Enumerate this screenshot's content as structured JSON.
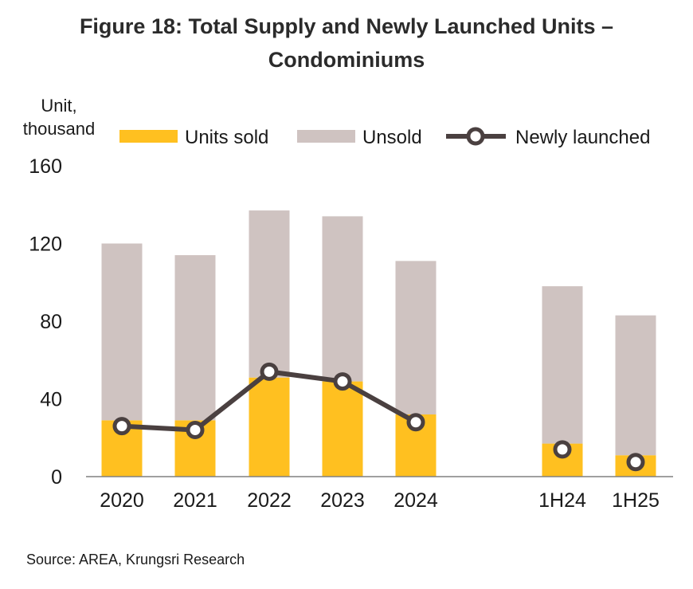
{
  "chart_data": {
    "type": "bar",
    "title": [
      "Figure 18: Total Supply and Newly Launched Units –",
      "Condominiums"
    ],
    "ylabel": [
      "Unit,",
      "thousand"
    ],
    "xlabel": "",
    "ylim": [
      0,
      160
    ],
    "yticks": [
      0,
      40,
      80,
      120,
      160
    ],
    "grid": false,
    "legend_position": "top",
    "stacked": true,
    "categories": [
      "2020",
      "2021",
      "2022",
      "2023",
      "2024",
      "1H24",
      "1H25"
    ],
    "series": [
      {
        "name": "Units sold",
        "type": "bar",
        "color": "#FFC020",
        "values": [
          29,
          29,
          51,
          49,
          32,
          17,
          11
        ]
      },
      {
        "name": "Unsold",
        "type": "bar",
        "color": "#CFC3C1",
        "values": [
          91,
          85,
          86,
          85,
          79,
          81,
          72
        ]
      },
      {
        "name": "Newly launched",
        "type": "line",
        "color": "#4A4040",
        "values": [
          26,
          24,
          54,
          49,
          28,
          14,
          7.5
        ]
      }
    ],
    "source": "Source: AREA, Krungsri Research"
  }
}
